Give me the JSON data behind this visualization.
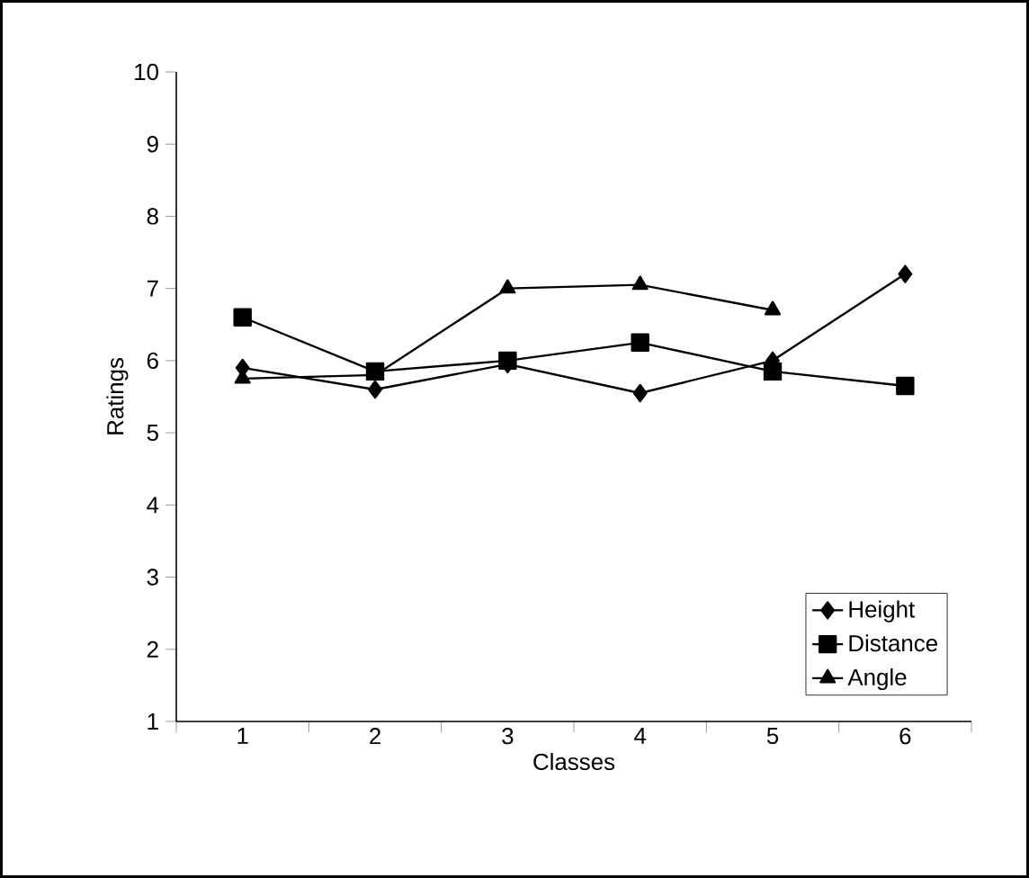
{
  "chart_data": {
    "type": "line",
    "xlabel": "Classes",
    "ylabel": "Ratings",
    "categories": [
      "1",
      "2",
      "3",
      "4",
      "5",
      "6"
    ],
    "series": [
      {
        "name": "Height",
        "color": "#000000",
        "marker": "diamond",
        "values": [
          5.9,
          5.6,
          5.95,
          5.55,
          6.0,
          7.2
        ]
      },
      {
        "name": "Distance",
        "color": "#000000",
        "marker": "square",
        "values": [
          6.6,
          5.85,
          6.0,
          6.25,
          5.85,
          5.65
        ]
      },
      {
        "name": "Angle",
        "color": "#000000",
        "marker": "triangle",
        "values": [
          5.75,
          5.8,
          7.0,
          7.05,
          6.7,
          null
        ]
      }
    ],
    "ylim": [
      1,
      10
    ],
    "yticks": [
      1,
      2,
      3,
      4,
      5,
      6,
      7,
      8,
      9,
      10
    ],
    "grid": false,
    "legend": "bottom right",
    "line_style": "solid"
  }
}
